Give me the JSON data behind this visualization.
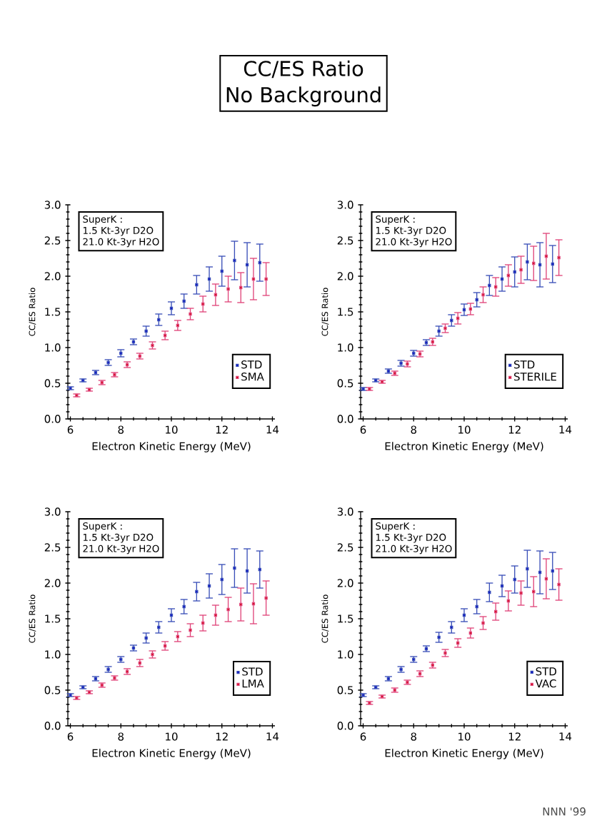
{
  "chart_data": [
    {
      "type": "scatter",
      "title": "CC/ES Ratio",
      "subtitle": "No Background",
      "xlabel": "Electron Kinetic Energy (MeV)",
      "ylabel": "CC/ES Ratio",
      "annotations": [
        "SuperK :",
        "1.5 Kt-3yr D2O",
        "21.0 Kt-3yr H2O"
      ],
      "xlim": [
        5.9,
        14.1
      ],
      "ylim": [
        0,
        3
      ],
      "xticks": [
        6,
        8,
        10,
        12,
        14
      ],
      "yticks": [
        {
          "value": 0,
          "label": "0.0"
        },
        {
          "value": 0.5,
          "label": "0.5"
        },
        {
          "value": 1,
          "label": "1.0"
        },
        {
          "value": 1.5,
          "label": "1.5"
        },
        {
          "value": 2,
          "label": "2.0"
        },
        {
          "value": 2.5,
          "label": "2.5"
        },
        {
          "value": 3,
          "label": "3.0"
        }
      ],
      "legend": "bottom right",
      "marker": "square",
      "series": [
        {
          "name": "STD",
          "color": "#3a4fb8",
          "x": [
            6.0,
            6.5,
            7.0,
            7.5,
            8.0,
            8.5,
            9.0,
            9.5,
            10.0,
            10.5,
            11.0,
            11.5,
            12.0,
            12.5,
            13.0,
            13.5
          ],
          "values": [
            0.43,
            0.54,
            0.65,
            0.79,
            0.92,
            1.08,
            1.23,
            1.39,
            1.55,
            1.65,
            1.88,
            1.96,
            2.07,
            2.22,
            2.16,
            2.19
          ],
          "errors": [
            0.02,
            0.02,
            0.03,
            0.04,
            0.05,
            0.04,
            0.07,
            0.08,
            0.09,
            0.1,
            0.13,
            0.17,
            0.21,
            0.27,
            0.31,
            0.26
          ]
        },
        {
          "name": "SMA",
          "color": "#e0457a",
          "x": [
            6.25,
            6.75,
            7.25,
            7.75,
            8.25,
            8.75,
            9.25,
            9.75,
            10.25,
            10.75,
            11.25,
            11.75,
            12.25,
            12.75,
            13.25,
            13.75
          ],
          "values": [
            0.33,
            0.41,
            0.51,
            0.62,
            0.76,
            0.88,
            1.03,
            1.17,
            1.31,
            1.47,
            1.61,
            1.74,
            1.82,
            1.84,
            1.96,
            1.96
          ],
          "errors": [
            0.02,
            0.02,
            0.03,
            0.03,
            0.04,
            0.04,
            0.05,
            0.06,
            0.07,
            0.08,
            0.11,
            0.15,
            0.18,
            0.21,
            0.29,
            0.23
          ]
        }
      ]
    },
    {
      "type": "scatter",
      "xlabel": "Electron Kinetic Energy (MeV)",
      "ylabel": "CC/ES Ratio",
      "annotations": [
        "SuperK :",
        "1.5 Kt-3yr D2O",
        "21.0 Kt-3yr H2O"
      ],
      "xlim": [
        5.9,
        14.1
      ],
      "ylim": [
        0,
        3
      ],
      "xticks": [
        6,
        8,
        10,
        12,
        14
      ],
      "yticks": [
        {
          "value": 0,
          "label": "0.0"
        },
        {
          "value": 0.5,
          "label": "0.5"
        },
        {
          "value": 1,
          "label": "1.0"
        },
        {
          "value": 1.5,
          "label": "1.5"
        },
        {
          "value": 2,
          "label": "2.0"
        },
        {
          "value": 2.5,
          "label": "2.5"
        },
        {
          "value": 3,
          "label": "3.0"
        }
      ],
      "legend": "bottom right",
      "marker": "square",
      "series": [
        {
          "name": "STD",
          "color": "#3a4fb8",
          "x": [
            6.0,
            6.5,
            7.0,
            7.5,
            8.0,
            8.5,
            9.0,
            9.5,
            10.0,
            10.5,
            11.0,
            11.5,
            12.0,
            12.5,
            13.0,
            13.5
          ],
          "values": [
            0.42,
            0.54,
            0.67,
            0.78,
            0.92,
            1.07,
            1.23,
            1.38,
            1.53,
            1.67,
            1.87,
            1.96,
            2.06,
            2.2,
            2.16,
            2.17
          ],
          "errors": [
            0.02,
            0.02,
            0.03,
            0.04,
            0.04,
            0.04,
            0.07,
            0.08,
            0.08,
            0.1,
            0.14,
            0.17,
            0.21,
            0.25,
            0.31,
            0.26
          ]
        },
        {
          "name": "STERILE",
          "color": "#e0457a",
          "x": [
            6.25,
            6.75,
            7.25,
            7.75,
            8.25,
            8.75,
            9.25,
            9.75,
            10.25,
            10.75,
            11.25,
            11.75,
            12.25,
            12.75,
            13.25,
            13.75
          ],
          "values": [
            0.42,
            0.52,
            0.64,
            0.77,
            0.91,
            1.08,
            1.27,
            1.41,
            1.54,
            1.74,
            1.85,
            2.01,
            2.09,
            2.18,
            2.28,
            2.26
          ],
          "errors": [
            0.02,
            0.02,
            0.03,
            0.04,
            0.04,
            0.05,
            0.06,
            0.08,
            0.08,
            0.11,
            0.13,
            0.15,
            0.19,
            0.24,
            0.32,
            0.25
          ]
        }
      ]
    },
    {
      "type": "scatter",
      "xlabel": "Electron Kinetic Energy (MeV)",
      "ylabel": "CC/ES Ratio",
      "annotations": [
        "SuperK :",
        "1.5 Kt-3yr D2O",
        "21.0 Kt-3yr H2O"
      ],
      "xlim": [
        5.9,
        14.1
      ],
      "ylim": [
        0,
        3
      ],
      "xticks": [
        6,
        8,
        10,
        12,
        14
      ],
      "yticks": [
        {
          "value": 0,
          "label": "0.0"
        },
        {
          "value": 0.5,
          "label": "0.5"
        },
        {
          "value": 1,
          "label": "1.0"
        },
        {
          "value": 1.5,
          "label": "1.5"
        },
        {
          "value": 2,
          "label": "2.0"
        },
        {
          "value": 2.5,
          "label": "2.5"
        },
        {
          "value": 3,
          "label": "3.0"
        }
      ],
      "legend": "bottom right",
      "marker": "square",
      "series": [
        {
          "name": "STD",
          "color": "#3a4fb8",
          "x": [
            6.0,
            6.5,
            7.0,
            7.5,
            8.0,
            8.5,
            9.0,
            9.5,
            10.0,
            10.5,
            11.0,
            11.5,
            12.0,
            12.5,
            13.0,
            13.5
          ],
          "values": [
            0.43,
            0.54,
            0.66,
            0.79,
            0.93,
            1.09,
            1.23,
            1.38,
            1.55,
            1.67,
            1.88,
            1.96,
            2.05,
            2.21,
            2.17,
            2.19
          ],
          "errors": [
            0.02,
            0.02,
            0.03,
            0.04,
            0.04,
            0.04,
            0.07,
            0.08,
            0.09,
            0.1,
            0.13,
            0.17,
            0.21,
            0.27,
            0.31,
            0.26
          ]
        },
        {
          "name": "LMA",
          "color": "#e0457a",
          "x": [
            6.25,
            6.75,
            7.25,
            7.75,
            8.25,
            8.75,
            9.25,
            9.75,
            10.25,
            10.75,
            11.25,
            11.75,
            12.25,
            12.75,
            13.25,
            13.75
          ],
          "values": [
            0.39,
            0.47,
            0.57,
            0.67,
            0.76,
            0.88,
            1.0,
            1.12,
            1.25,
            1.34,
            1.44,
            1.55,
            1.63,
            1.7,
            1.71,
            1.79
          ],
          "errors": [
            0.02,
            0.02,
            0.03,
            0.03,
            0.04,
            0.05,
            0.05,
            0.06,
            0.07,
            0.09,
            0.11,
            0.14,
            0.17,
            0.23,
            0.28,
            0.24
          ]
        }
      ]
    },
    {
      "type": "scatter",
      "xlabel": "Electron Kinetic Energy (MeV)",
      "ylabel": "CC/ES Ratio",
      "annotations": [
        "SuperK :",
        "1.5 Kt-3yr D2O",
        "21.0 Kt-3yr H2O",
        "NNN '99"
      ],
      "xlim": [
        5.9,
        14.1
      ],
      "ylim": [
        0,
        3
      ],
      "xticks": [
        6,
        8,
        10,
        12,
        14
      ],
      "yticks": [
        {
          "value": 0,
          "label": "0.0"
        },
        {
          "value": 0.5,
          "label": "0.5"
        },
        {
          "value": 1,
          "label": "1.0"
        },
        {
          "value": 1.5,
          "label": "1.5"
        },
        {
          "value": 2,
          "label": "2.0"
        },
        {
          "value": 2.5,
          "label": "2.5"
        },
        {
          "value": 3,
          "label": "3.0"
        }
      ],
      "legend": "bottom right",
      "marker": "square",
      "series": [
        {
          "name": "STD",
          "color": "#3a4fb8",
          "x": [
            6.0,
            6.5,
            7.0,
            7.5,
            8.0,
            8.5,
            9.0,
            9.5,
            10.0,
            10.5,
            11.0,
            11.5,
            12.0,
            12.5,
            13.0,
            13.5
          ],
          "values": [
            0.43,
            0.54,
            0.66,
            0.79,
            0.93,
            1.08,
            1.24,
            1.38,
            1.55,
            1.67,
            1.87,
            1.96,
            2.05,
            2.2,
            2.15,
            2.17
          ],
          "errors": [
            0.02,
            0.02,
            0.03,
            0.04,
            0.04,
            0.04,
            0.07,
            0.08,
            0.09,
            0.1,
            0.13,
            0.15,
            0.19,
            0.26,
            0.3,
            0.26
          ]
        },
        {
          "name": "VAC",
          "color": "#e0457a",
          "x": [
            6.25,
            6.75,
            7.25,
            7.75,
            8.25,
            8.75,
            9.25,
            9.75,
            10.25,
            10.75,
            11.25,
            11.75,
            12.25,
            12.75,
            13.25,
            13.75
          ],
          "values": [
            0.32,
            0.41,
            0.5,
            0.61,
            0.73,
            0.85,
            1.02,
            1.16,
            1.3,
            1.44,
            1.6,
            1.75,
            1.86,
            1.88,
            2.06,
            1.98
          ],
          "errors": [
            0.02,
            0.02,
            0.03,
            0.03,
            0.04,
            0.04,
            0.05,
            0.06,
            0.07,
            0.09,
            0.12,
            0.14,
            0.17,
            0.21,
            0.28,
            0.22
          ]
        }
      ]
    }
  ]
}
